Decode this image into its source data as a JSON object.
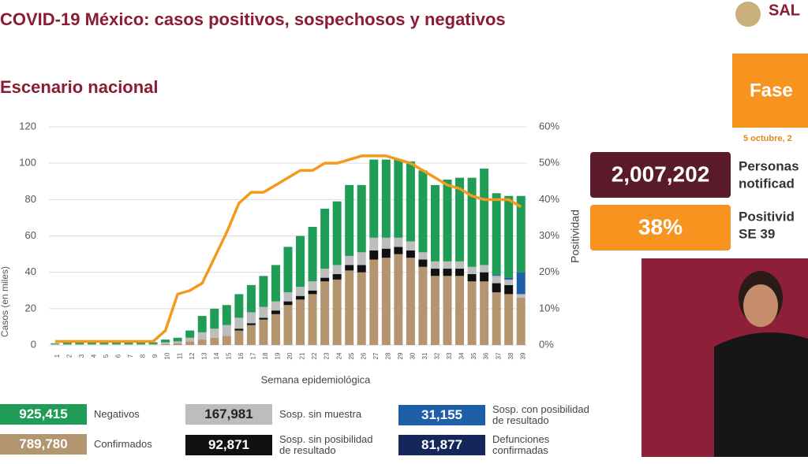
{
  "header": {
    "title": "COVID-19 México: casos positivos, sospechosos y negativos",
    "subtitle": "Escenario nacional",
    "logo": "SAL"
  },
  "side": {
    "phase": "Fase",
    "date": "5 octubre, 2",
    "notified_value": "2,007,202",
    "notified_label": [
      "Personas",
      "notificad"
    ],
    "positivity_value": "38%",
    "positivity_label": [
      "Positivid",
      "SE 39"
    ]
  },
  "chart_data": {
    "type": "bar",
    "stacked": true,
    "categories": [
      "1",
      "2",
      "3",
      "4",
      "5",
      "6",
      "7",
      "8",
      "9",
      "10",
      "11",
      "12",
      "13",
      "14",
      "15",
      "16",
      "17",
      "18",
      "19",
      "20",
      "21",
      "22",
      "23",
      "24",
      "25",
      "26",
      "27",
      "28",
      "29",
      "30",
      "31",
      "32",
      "33",
      "34",
      "35",
      "36",
      "37",
      "38",
      "39"
    ],
    "series": [
      {
        "name": "Confirmados",
        "color": "#b39670",
        "total_label": "789,780",
        "values": [
          0,
          0,
          0,
          0,
          0,
          0,
          0,
          0,
          0,
          0.5,
          1,
          2,
          3,
          4,
          5,
          8,
          11,
          14,
          17,
          22,
          25,
          28,
          35,
          36,
          41,
          40,
          47,
          48,
          50,
          48,
          43,
          38,
          38,
          38,
          35,
          35,
          29,
          28,
          26
        ]
      },
      {
        "name": "Sosp. sin posibilidad de resultado",
        "color": "#111111",
        "total_label": "92,871",
        "values": [
          0,
          0,
          0,
          0,
          0,
          0,
          0,
          0,
          0,
          0,
          0,
          0,
          0,
          0,
          0,
          1,
          1,
          1,
          2,
          2,
          2,
          2,
          2,
          3,
          3,
          4,
          5,
          5,
          4,
          4,
          4,
          4,
          4,
          4,
          4,
          5,
          5,
          5,
          0
        ]
      },
      {
        "name": "Sosp. sin muestra",
        "color": "#bdbdbd",
        "total_label": "167,981",
        "values": [
          0.5,
          0.5,
          0.5,
          0.5,
          0.5,
          0.5,
          0.5,
          0.5,
          0.5,
          1,
          1,
          2,
          4,
          5,
          6,
          6,
          6,
          6,
          5,
          5,
          5,
          5,
          5,
          5,
          5,
          7,
          7,
          6,
          5,
          5,
          4,
          4,
          4,
          4,
          4,
          4,
          4,
          3,
          2
        ]
      },
      {
        "name": "Sosp. con posibilidad de resultado",
        "color": "#1f5fa8",
        "total_label": "31,155",
        "values": [
          0,
          0,
          0,
          0,
          0,
          0,
          0,
          0,
          0,
          0,
          0,
          0,
          0,
          0,
          0,
          0,
          0,
          0,
          0,
          0,
          0,
          0,
          0,
          0,
          0,
          0,
          0,
          0,
          0,
          0,
          0,
          0,
          0,
          0,
          0,
          0,
          0.5,
          1,
          12
        ]
      },
      {
        "name": "Negativos",
        "color": "#1f9d57",
        "total_label": "925,415",
        "values": [
          0.5,
          1,
          1.5,
          1.5,
          1,
          1,
          1,
          1,
          1,
          1.5,
          2,
          4,
          9,
          11,
          11,
          13,
          15,
          17,
          20,
          25,
          28,
          30,
          33,
          35,
          39,
          37,
          43,
          43,
          43,
          44,
          45,
          42,
          45,
          46,
          49,
          53,
          45,
          45,
          42
        ]
      },
      {
        "type": "line",
        "axis": "y2",
        "color": "#f39a1e",
        "values": [
          1,
          1,
          1,
          1,
          1,
          1,
          1,
          1,
          1,
          4,
          14,
          15,
          17,
          24,
          31,
          39,
          42,
          42,
          44,
          46,
          48,
          48,
          50,
          50,
          51,
          52,
          52,
          52,
          51,
          50,
          48,
          46,
          44,
          43,
          41,
          40,
          40,
          40,
          38
        ]
      }
    ],
    "deaths": {
      "name": "Defunciones confirmadas",
      "color": "#13275a",
      "total_label": "81,877"
    },
    "ylim": [
      0,
      120
    ],
    "yticks": [
      0,
      20,
      40,
      60,
      80,
      100,
      120
    ],
    "y2lim": [
      0,
      60
    ],
    "y2ticks": [
      {
        "value": 0,
        "label": "0%"
      },
      {
        "value": 10,
        "label": "10%"
      },
      {
        "value": 20,
        "label": "20%"
      },
      {
        "value": 30,
        "label": "30%"
      },
      {
        "value": 40,
        "label": "40%"
      },
      {
        "value": 50,
        "label": "50%"
      },
      {
        "value": 60,
        "label": "60%"
      }
    ],
    "xlabel": "Semana epidemiológica",
    "ylabel": "Casos (en miles)",
    "y2label": "Positividad",
    "grid": true
  }
}
